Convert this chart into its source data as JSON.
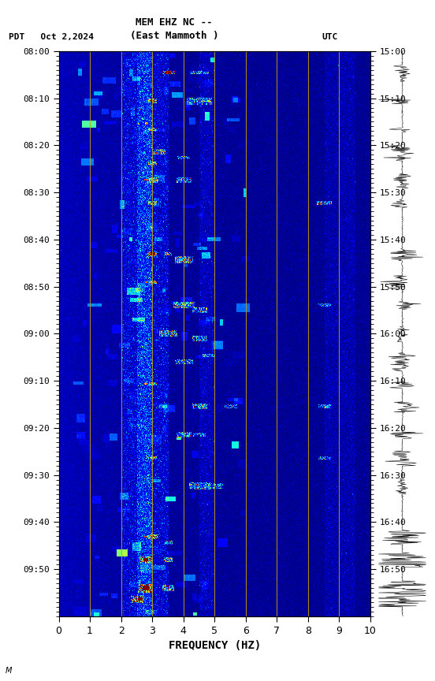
{
  "title_line1": "MEM EHZ NC --",
  "title_line2": "(East Mammoth )",
  "left_label": "PDT   Oct 2,2024",
  "right_label": "UTC",
  "xlabel": "FREQUENCY (HZ)",
  "freq_min": 0,
  "freq_max": 10,
  "freq_ticks": [
    0,
    1,
    2,
    3,
    4,
    5,
    6,
    7,
    8,
    9,
    10
  ],
  "time_left_labels": [
    "08:00",
    "08:10",
    "08:20",
    "08:30",
    "08:40",
    "08:50",
    "09:00",
    "09:10",
    "09:20",
    "09:30",
    "09:40",
    "09:50"
  ],
  "time_right_labels": [
    "15:00",
    "15:10",
    "15:20",
    "15:30",
    "15:40",
    "15:50",
    "16:00",
    "16:10",
    "16:20",
    "16:30",
    "16:40",
    "16:50"
  ],
  "n_time_steps": 660,
  "n_freq_steps": 500,
  "background_color": "#ffffff",
  "vertical_line_color": "#c8a000",
  "vertical_line_freqs": [
    1,
    2,
    3,
    4,
    5,
    6,
    7,
    8,
    9
  ],
  "colormap": "jet",
  "font_family": "monospace"
}
